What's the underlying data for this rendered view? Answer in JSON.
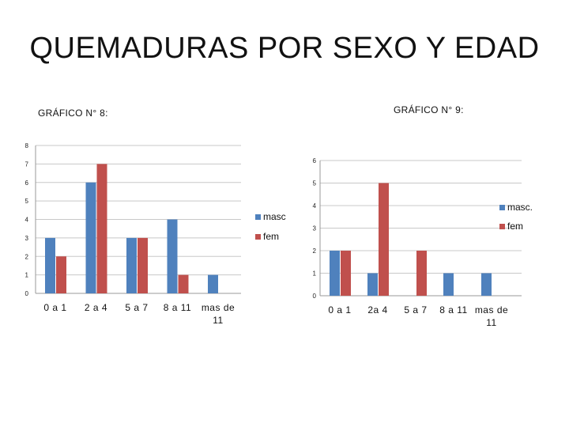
{
  "title": "QUEMADURAS POR SEXO Y EDAD",
  "colors": {
    "masc": "#4f81bd",
    "fem": "#c0504d"
  },
  "chart_data": [
    {
      "type": "bar",
      "title": "GRÁFICO N° 8:",
      "categories": [
        "0 a 1",
        "2 a 4",
        "5 a 7",
        "8 a 11",
        "mas de 11"
      ],
      "series": [
        {
          "name": "masc",
          "values": [
            3,
            6,
            3,
            4,
            1
          ]
        },
        {
          "name": "fem",
          "values": [
            2,
            7,
            3,
            1,
            0
          ]
        }
      ],
      "ylim": [
        0,
        8
      ],
      "yticks": [
        0,
        1,
        2,
        3,
        4,
        5,
        6,
        7,
        8
      ],
      "grid": true,
      "legend": "right"
    },
    {
      "type": "bar",
      "title": "GRÁFICO N° 9:",
      "categories": [
        "0 a 1",
        "2a 4",
        "5 a 7",
        "8 a 11",
        "mas de 11"
      ],
      "series": [
        {
          "name": "masc.",
          "values": [
            2,
            1,
            0,
            1,
            1
          ]
        },
        {
          "name": "fem",
          "values": [
            2,
            5,
            2,
            0,
            0
          ]
        }
      ],
      "ylim": [
        0,
        6
      ],
      "yticks": [
        0,
        1,
        2,
        3,
        4,
        5,
        6
      ],
      "grid": true,
      "legend": "top-right"
    }
  ]
}
